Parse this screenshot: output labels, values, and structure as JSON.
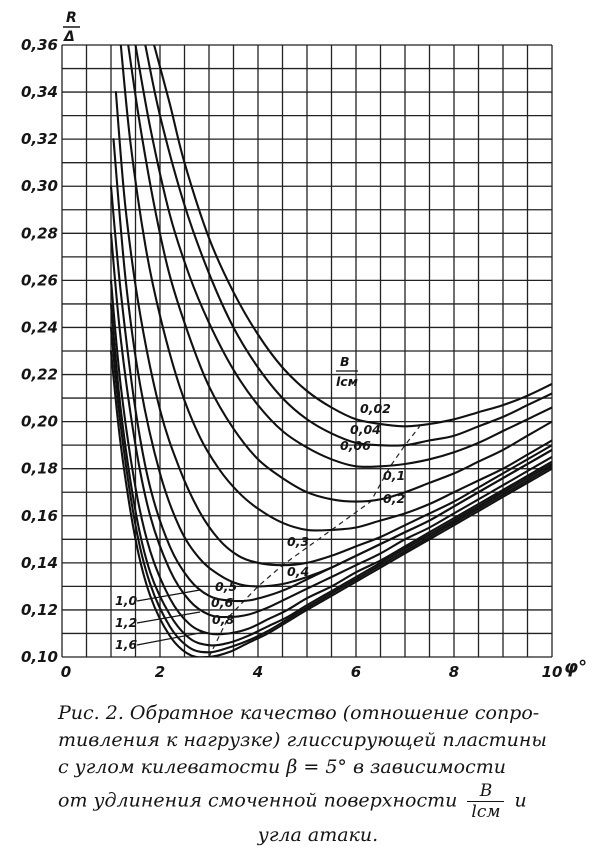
{
  "chart_data": {
    "type": "line",
    "y_axis_title_numerator": "R",
    "y_axis_title_denominator": "Δ",
    "x_axis_title": "φ°",
    "xlim": [
      0,
      10
    ],
    "ylim": [
      0.1,
      0.36
    ],
    "x_ticks": [
      0,
      2,
      4,
      6,
      8,
      10
    ],
    "x_tick_labels": [
      "0",
      "2",
      "4",
      "6",
      "8",
      "10"
    ],
    "y_ticks": [
      0.1,
      0.12,
      0.14,
      0.16,
      0.18,
      0.2,
      0.22,
      0.24,
      0.26,
      0.28,
      0.3,
      0.32,
      0.34,
      0.36
    ],
    "y_tick_labels": [
      "0,10",
      "0,12",
      "0,14",
      "0,16",
      "0,18",
      "0,20",
      "0,22",
      "0,24",
      "0,26",
      "0,28",
      "0,30",
      "0,32",
      "0,34",
      "0,36"
    ],
    "grid": true,
    "parameter_label_numerator": "B",
    "parameter_label_denominator": "lсм",
    "series": [
      {
        "name": "0,02",
        "points": [
          [
            1.88,
            0.36
          ],
          [
            2.2,
            0.335
          ],
          [
            2.5,
            0.31
          ],
          [
            3.0,
            0.278
          ],
          [
            3.5,
            0.255
          ],
          [
            4.0,
            0.237
          ],
          [
            4.5,
            0.223
          ],
          [
            5.0,
            0.213
          ],
          [
            5.5,
            0.206
          ],
          [
            6.0,
            0.201
          ],
          [
            6.5,
            0.199
          ],
          [
            7.0,
            0.198
          ],
          [
            7.5,
            0.199
          ],
          [
            8.0,
            0.201
          ],
          [
            8.5,
            0.204
          ],
          [
            9.0,
            0.207
          ],
          [
            9.5,
            0.211
          ],
          [
            10.0,
            0.216
          ]
        ]
      },
      {
        "name": "0,04",
        "points": [
          [
            1.7,
            0.36
          ],
          [
            2.0,
            0.33
          ],
          [
            2.5,
            0.292
          ],
          [
            3.0,
            0.263
          ],
          [
            3.5,
            0.24
          ],
          [
            4.0,
            0.223
          ],
          [
            4.5,
            0.21
          ],
          [
            5.0,
            0.201
          ],
          [
            5.5,
            0.195
          ],
          [
            6.0,
            0.191
          ],
          [
            6.5,
            0.19
          ],
          [
            7.0,
            0.19
          ],
          [
            7.5,
            0.192
          ],
          [
            8.0,
            0.194
          ],
          [
            8.5,
            0.198
          ],
          [
            9.0,
            0.202
          ],
          [
            9.5,
            0.207
          ],
          [
            10.0,
            0.212
          ]
        ]
      },
      {
        "name": "0,06",
        "points": [
          [
            1.5,
            0.36
          ],
          [
            1.8,
            0.325
          ],
          [
            2.2,
            0.288
          ],
          [
            2.6,
            0.262
          ],
          [
            3.0,
            0.242
          ],
          [
            3.5,
            0.222
          ],
          [
            4.0,
            0.207
          ],
          [
            4.5,
            0.196
          ],
          [
            5.0,
            0.189
          ],
          [
            5.5,
            0.184
          ],
          [
            6.0,
            0.181
          ],
          [
            6.5,
            0.181
          ],
          [
            7.0,
            0.182
          ],
          [
            7.5,
            0.184
          ],
          [
            8.0,
            0.187
          ],
          [
            8.5,
            0.191
          ],
          [
            9.0,
            0.196
          ],
          [
            9.5,
            0.201
          ],
          [
            10.0,
            0.206
          ]
        ]
      },
      {
        "name": "0,1",
        "points": [
          [
            1.35,
            0.36
          ],
          [
            1.6,
            0.325
          ],
          [
            1.9,
            0.29
          ],
          [
            2.2,
            0.262
          ],
          [
            2.6,
            0.236
          ],
          [
            3.0,
            0.215
          ],
          [
            3.5,
            0.197
          ],
          [
            4.0,
            0.184
          ],
          [
            4.5,
            0.176
          ],
          [
            5.0,
            0.17
          ],
          [
            5.5,
            0.167
          ],
          [
            6.0,
            0.166
          ],
          [
            6.5,
            0.167
          ],
          [
            7.0,
            0.17
          ],
          [
            7.5,
            0.174
          ],
          [
            8.0,
            0.178
          ],
          [
            8.5,
            0.183
          ],
          [
            9.0,
            0.188
          ],
          [
            9.5,
            0.194
          ],
          [
            10.0,
            0.2
          ]
        ]
      },
      {
        "name": "0,2",
        "points": [
          [
            1.2,
            0.36
          ],
          [
            1.4,
            0.318
          ],
          [
            1.7,
            0.275
          ],
          [
            2.0,
            0.245
          ],
          [
            2.4,
            0.215
          ],
          [
            2.8,
            0.194
          ],
          [
            3.2,
            0.18
          ],
          [
            3.6,
            0.17
          ],
          [
            4.0,
            0.163
          ],
          [
            4.5,
            0.157
          ],
          [
            5.0,
            0.154
          ],
          [
            5.5,
            0.154
          ],
          [
            6.0,
            0.155
          ],
          [
            6.5,
            0.158
          ],
          [
            7.0,
            0.161
          ],
          [
            7.5,
            0.165
          ],
          [
            8.0,
            0.17
          ],
          [
            8.5,
            0.175
          ],
          [
            9.0,
            0.18
          ],
          [
            9.5,
            0.186
          ],
          [
            10.0,
            0.192
          ]
        ]
      },
      {
        "name": "0,3",
        "points": [
          [
            1.1,
            0.34
          ],
          [
            1.3,
            0.29
          ],
          [
            1.6,
            0.245
          ],
          [
            2.0,
            0.205
          ],
          [
            2.4,
            0.18
          ],
          [
            2.8,
            0.162
          ],
          [
            3.2,
            0.15
          ],
          [
            3.6,
            0.143
          ],
          [
            4.0,
            0.14
          ],
          [
            4.5,
            0.139
          ],
          [
            5.0,
            0.14
          ],
          [
            5.5,
            0.143
          ],
          [
            6.0,
            0.147
          ],
          [
            6.5,
            0.151
          ],
          [
            7.0,
            0.156
          ],
          [
            7.5,
            0.161
          ],
          [
            8.0,
            0.166
          ],
          [
            8.5,
            0.172
          ],
          [
            9.0,
            0.178
          ],
          [
            9.5,
            0.184
          ],
          [
            10.0,
            0.19
          ]
        ]
      },
      {
        "name": "0,4",
        "points": [
          [
            1.05,
            0.32
          ],
          [
            1.3,
            0.26
          ],
          [
            1.6,
            0.215
          ],
          [
            2.0,
            0.178
          ],
          [
            2.4,
            0.155
          ],
          [
            2.8,
            0.142
          ],
          [
            3.2,
            0.135
          ],
          [
            3.6,
            0.131
          ],
          [
            4.0,
            0.13
          ],
          [
            4.5,
            0.131
          ],
          [
            5.0,
            0.134
          ],
          [
            5.5,
            0.138
          ],
          [
            6.0,
            0.143
          ],
          [
            6.5,
            0.148
          ],
          [
            7.0,
            0.153
          ],
          [
            7.5,
            0.158
          ],
          [
            8.0,
            0.164
          ],
          [
            8.5,
            0.17
          ],
          [
            9.0,
            0.176
          ],
          [
            9.5,
            0.182
          ],
          [
            10.0,
            0.188
          ]
        ]
      },
      {
        "name": "0,5",
        "points": [
          [
            1.0,
            0.3
          ],
          [
            1.2,
            0.255
          ],
          [
            1.5,
            0.205
          ],
          [
            1.8,
            0.172
          ],
          [
            2.2,
            0.147
          ],
          [
            2.6,
            0.133
          ],
          [
            3.0,
            0.126
          ],
          [
            3.4,
            0.124
          ],
          [
            3.8,
            0.124
          ],
          [
            4.2,
            0.126
          ],
          [
            4.6,
            0.129
          ],
          [
            5.0,
            0.133
          ],
          [
            5.5,
            0.138
          ],
          [
            6.0,
            0.143
          ],
          [
            6.5,
            0.148
          ],
          [
            7.0,
            0.153
          ],
          [
            7.5,
            0.158
          ],
          [
            8.0,
            0.164
          ],
          [
            8.5,
            0.17
          ],
          [
            9.0,
            0.176
          ],
          [
            9.5,
            0.182
          ],
          [
            10.0,
            0.188
          ]
        ]
      },
      {
        "name": "0,6",
        "points": [
          [
            1.0,
            0.28
          ],
          [
            1.2,
            0.235
          ],
          [
            1.5,
            0.19
          ],
          [
            1.8,
            0.16
          ],
          [
            2.2,
            0.137
          ],
          [
            2.6,
            0.124
          ],
          [
            3.0,
            0.118
          ],
          [
            3.4,
            0.117
          ],
          [
            3.8,
            0.118
          ],
          [
            4.2,
            0.121
          ],
          [
            4.6,
            0.125
          ],
          [
            5.0,
            0.129
          ],
          [
            5.5,
            0.134
          ],
          [
            6.0,
            0.139
          ],
          [
            6.5,
            0.144
          ],
          [
            7.0,
            0.15
          ],
          [
            7.5,
            0.155
          ],
          [
            8.0,
            0.161
          ],
          [
            8.5,
            0.167
          ],
          [
            9.0,
            0.173
          ],
          [
            9.5,
            0.179
          ],
          [
            10.0,
            0.185
          ]
        ]
      },
      {
        "name": "0,8",
        "points": [
          [
            1.0,
            0.26
          ],
          [
            1.2,
            0.215
          ],
          [
            1.5,
            0.172
          ],
          [
            1.8,
            0.145
          ],
          [
            2.2,
            0.125
          ],
          [
            2.6,
            0.114
          ],
          [
            3.0,
            0.11
          ],
          [
            3.4,
            0.11
          ],
          [
            3.8,
            0.112
          ],
          [
            4.2,
            0.116
          ],
          [
            4.6,
            0.12
          ],
          [
            5.0,
            0.125
          ],
          [
            5.5,
            0.13
          ],
          [
            6.0,
            0.136
          ],
          [
            6.5,
            0.141
          ],
          [
            7.0,
            0.147
          ],
          [
            7.5,
            0.153
          ],
          [
            8.0,
            0.159
          ],
          [
            8.5,
            0.165
          ],
          [
            9.0,
            0.171
          ],
          [
            9.5,
            0.177
          ],
          [
            10.0,
            0.183
          ]
        ]
      },
      {
        "name": "1,0",
        "points": [
          [
            1.0,
            0.25
          ],
          [
            1.2,
            0.205
          ],
          [
            1.5,
            0.162
          ],
          [
            1.8,
            0.136
          ],
          [
            2.2,
            0.118
          ],
          [
            2.6,
            0.108
          ],
          [
            3.0,
            0.105
          ],
          [
            3.4,
            0.106
          ],
          [
            3.8,
            0.109
          ],
          [
            4.2,
            0.113
          ],
          [
            4.6,
            0.117
          ],
          [
            5.0,
            0.122
          ],
          [
            5.5,
            0.128
          ],
          [
            6.0,
            0.134
          ],
          [
            6.5,
            0.14
          ],
          [
            7.0,
            0.146
          ],
          [
            7.5,
            0.152
          ],
          [
            8.0,
            0.158
          ],
          [
            8.5,
            0.164
          ],
          [
            9.0,
            0.17
          ],
          [
            9.5,
            0.176
          ],
          [
            10.0,
            0.182
          ]
        ]
      },
      {
        "name": "1,2",
        "points": [
          [
            1.0,
            0.24
          ],
          [
            1.2,
            0.198
          ],
          [
            1.5,
            0.156
          ],
          [
            1.8,
            0.131
          ],
          [
            2.2,
            0.113
          ],
          [
            2.6,
            0.104
          ],
          [
            3.0,
            0.102
          ],
          [
            3.4,
            0.104
          ],
          [
            3.8,
            0.107
          ],
          [
            4.2,
            0.111
          ],
          [
            4.6,
            0.116
          ],
          [
            5.0,
            0.121
          ],
          [
            5.5,
            0.127
          ],
          [
            6.0,
            0.133
          ],
          [
            6.5,
            0.139
          ],
          [
            7.0,
            0.145
          ],
          [
            7.5,
            0.151
          ],
          [
            8.0,
            0.157
          ],
          [
            8.5,
            0.163
          ],
          [
            9.0,
            0.169
          ],
          [
            9.5,
            0.175
          ],
          [
            10.0,
            0.181
          ]
        ]
      },
      {
        "name": "1,6",
        "points": [
          [
            1.0,
            0.23
          ],
          [
            1.2,
            0.19
          ],
          [
            1.5,
            0.15
          ],
          [
            1.8,
            0.126
          ],
          [
            2.2,
            0.109
          ],
          [
            2.6,
            0.101
          ],
          [
            3.0,
            0.1
          ],
          [
            3.4,
            0.102
          ],
          [
            3.8,
            0.106
          ],
          [
            4.2,
            0.11
          ],
          [
            4.6,
            0.115
          ],
          [
            5.0,
            0.12
          ],
          [
            5.5,
            0.126
          ],
          [
            6.0,
            0.132
          ],
          [
            6.5,
            0.138
          ],
          [
            7.0,
            0.144
          ],
          [
            7.5,
            0.15
          ],
          [
            8.0,
            0.156
          ],
          [
            8.5,
            0.162
          ],
          [
            9.0,
            0.168
          ],
          [
            9.5,
            0.174
          ],
          [
            10.0,
            0.18
          ]
        ]
      }
    ],
    "minimum_locus": [
      [
        3.0,
        0.1
      ],
      [
        3.4,
        0.117
      ],
      [
        4.0,
        0.13
      ],
      [
        4.5,
        0.139
      ],
      [
        5.5,
        0.154
      ],
      [
        6.3,
        0.166
      ],
      [
        6.7,
        0.181
      ],
      [
        7.0,
        0.19
      ],
      [
        7.3,
        0.198
      ]
    ]
  },
  "caption": {
    "line1": "Рис. 2. Обратное качество (отношение сопро-",
    "line2": "тивления к нагрузке) глиссирующей пластины",
    "line3": "с углом килеватости β = 5° в зависимости",
    "line4_text": "от удлинения смоченной поверхности",
    "frac_num": "B",
    "frac_den": "lсм",
    "line4_tail": "и",
    "line5": "угла атаки."
  }
}
